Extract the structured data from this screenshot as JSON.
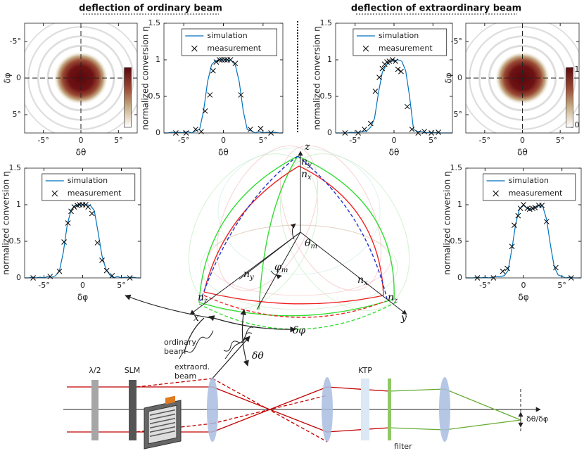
{
  "headings": [
    "deflection of ordinary beam",
    "deflection of extraordinary beam"
  ],
  "chart_data": [
    {
      "type": "heatmap",
      "x_label": "δθ",
      "y_label": "δφ",
      "xlim": [
        -7.5,
        7.5
      ],
      "ylim": [
        -7.5,
        7.5
      ],
      "y_reversed": true,
      "xticks": [
        {
          "value": -5,
          "label": "-5°"
        },
        0,
        {
          "value": 5,
          "label": "5°"
        }
      ],
      "yticks": [
        {
          "value": -5,
          "label": "-5°"
        },
        0,
        {
          "value": 5,
          "label": "5°"
        }
      ],
      "colorbar": true
    },
    {
      "type": "line",
      "x_label": "δθ",
      "y_label": "normalized conversion η",
      "xlim": [
        -7.5,
        7.5
      ],
      "ylim": [
        0,
        1.5
      ],
      "xticks": [
        {
          "value": -5,
          "label": "-5°"
        },
        0,
        {
          "value": 5,
          "label": "5°"
        }
      ],
      "yticks": [
        0,
        0.5,
        1,
        1.5
      ],
      "legend": "upper center",
      "series": [
        {
          "name": "simulation",
          "color": "#0072bd",
          "x": [
            -7.5,
            -7,
            -6.5,
            -6,
            -5.5,
            -5,
            -4.5,
            -4,
            -3.5,
            -3,
            -2.5,
            -2,
            -1.5,
            -1,
            -0.5,
            0,
            0.5,
            1,
            1.5,
            2,
            2.5,
            3,
            3.5,
            4,
            4.5,
            5,
            5.5,
            6,
            6.5,
            7,
            7.5
          ],
          "values": [
            0,
            0,
            0.01,
            0,
            0.01,
            0,
            0.02,
            0,
            0.03,
            0.05,
            0.3,
            0.7,
            0.93,
            0.99,
            1,
            1,
            1,
            0.99,
            0.93,
            0.7,
            0.3,
            0.05,
            0.03,
            0,
            0.02,
            0,
            0.01,
            0,
            0.01,
            0,
            0
          ]
        },
        {
          "name": "measurement",
          "color": "#000000",
          "marker": "x",
          "x": [
            -6,
            -4.7,
            -3.5,
            -2.8,
            -2.3,
            -1.7,
            -1.3,
            -0.9,
            -0.5,
            -0.2,
            0.2,
            0.5,
            0.9,
            1.5,
            2.2,
            3.4,
            4.7,
            6
          ],
          "values": [
            0,
            0,
            0.05,
            0.02,
            0.3,
            0.52,
            0.85,
            0.97,
            1,
            1,
            1,
            1,
            1,
            0.95,
            0.52,
            0.05,
            0.06,
            0
          ]
        }
      ]
    },
    {
      "type": "line",
      "x_label": "δθ",
      "y_label": "normalized conversion η",
      "xlim": [
        -7.5,
        7.5
      ],
      "ylim": [
        0,
        1.5
      ],
      "xticks": [
        {
          "value": -5,
          "label": "-5°"
        },
        0,
        {
          "value": 5,
          "label": "5°"
        }
      ],
      "yticks": [
        0,
        0.5,
        1,
        1.5
      ],
      "legend": "upper center",
      "series": [
        {
          "name": "simulation",
          "color": "#0072bd",
          "x": [
            -7.5,
            -7,
            -6.5,
            -6,
            -5.5,
            -5,
            -4.5,
            -4,
            -3.5,
            -3,
            -2.5,
            -2,
            -1.5,
            -1,
            -0.5,
            0,
            0.5,
            1,
            1.5,
            2,
            2.5,
            3,
            3.5,
            4,
            4.5,
            5,
            5.5,
            6,
            6.5,
            7,
            7.5
          ],
          "values": [
            0,
            0,
            0,
            0,
            0.01,
            0,
            0.01,
            0.02,
            0.03,
            0.08,
            0.2,
            0.55,
            0.83,
            0.93,
            0.97,
            0.99,
            1,
            0.98,
            0.85,
            0.5,
            0.05,
            0.02,
            0.02,
            0,
            0.01,
            0,
            0.01,
            0,
            0,
            0,
            0
          ]
        },
        {
          "name": "measurement",
          "color": "#000000",
          "marker": "x",
          "x": [
            -6.3,
            -4.6,
            -3.8,
            -3,
            -2.4,
            -1.9,
            -1.5,
            -1.2,
            -0.9,
            -0.6,
            -0.2,
            0.2,
            0.5,
            0.9,
            1.7,
            2.3,
            3.1,
            3.9,
            4.8,
            5.7
          ],
          "values": [
            0,
            0,
            0.05,
            0.13,
            0.57,
            0.76,
            0.88,
            0.94,
            0.97,
            0.98,
            1,
            0.98,
            0.87,
            0.84,
            0.36,
            0.05,
            0,
            0.02,
            0,
            0.01
          ]
        }
      ]
    },
    {
      "type": "heatmap",
      "x_label": "δθ",
      "y_label": "δφ",
      "xlim": [
        -7.5,
        7.5
      ],
      "ylim": [
        -7.5,
        7.5
      ],
      "y_reversed": true,
      "xticks": [
        {
          "value": -5,
          "label": "-5°"
        },
        0,
        {
          "value": 5,
          "label": "5°"
        }
      ],
      "yticks": [
        {
          "value": -5,
          "label": "-5°"
        },
        0,
        {
          "value": 5,
          "label": "5°"
        }
      ],
      "colorbar": true,
      "clim": [
        0,
        1
      ],
      "colorbar_ticks": [
        0,
        1
      ]
    },
    {
      "type": "line",
      "x_label": "δφ",
      "y_label": "normalized conversion η",
      "xlim": [
        -7.5,
        7.5
      ],
      "ylim": [
        0,
        1.5
      ],
      "xticks": [
        {
          "value": -5,
          "label": "-5°"
        },
        0,
        {
          "value": 5,
          "label": "5°"
        }
      ],
      "yticks": [
        0,
        0.5,
        1,
        1.5
      ],
      "legend": "upper center",
      "series": [
        {
          "name": "simulation",
          "color": "#0072bd",
          "x": [
            -7.5,
            -7,
            -6.5,
            -6,
            -5.5,
            -5,
            -4.5,
            -4,
            -3.5,
            -3,
            -2.5,
            -2,
            -1.5,
            -1,
            -0.5,
            0,
            0.5,
            1,
            1.5,
            2,
            2.5,
            3,
            3.5,
            4,
            4.5,
            5,
            5.5,
            6,
            6.5,
            7,
            7.5
          ],
          "values": [
            0,
            0,
            0.01,
            0,
            0.01,
            0,
            0.02,
            0.01,
            0.03,
            0.1,
            0.35,
            0.72,
            0.93,
            0.99,
            1,
            1,
            1,
            0.99,
            0.92,
            0.62,
            0.3,
            0.12,
            0.04,
            0,
            0.02,
            0,
            0.01,
            0,
            0.01,
            0,
            0
          ]
        },
        {
          "name": "measurement",
          "color": "#000000",
          "marker": "x",
          "x": [
            -6.4,
            -4.2,
            -3,
            -2.4,
            -1.9,
            -1.5,
            -1.1,
            -0.7,
            -0.4,
            0,
            0.4,
            0.7,
            1.2,
            1.9,
            2.5,
            3.1,
            3.8,
            6.1
          ],
          "values": [
            0,
            0.02,
            0.09,
            0.49,
            0.75,
            0.91,
            0.97,
            0.99,
            1,
            1,
            1,
            0.97,
            0.88,
            0.48,
            0.24,
            0.1,
            0.03,
            0
          ]
        }
      ]
    },
    {
      "type": "line",
      "x_label": "δφ",
      "y_label": "normalized conversion η",
      "xlim": [
        -7.5,
        7.5
      ],
      "ylim": [
        0,
        1.5
      ],
      "xticks": [
        {
          "value": -5,
          "label": "-5°"
        },
        0,
        {
          "value": 5,
          "label": "5°"
        }
      ],
      "yticks": [
        0,
        0.5,
        1,
        1.5
      ],
      "legend": "upper center",
      "series": [
        {
          "name": "simulation",
          "color": "#0072bd",
          "x": [
            -7.5,
            -7,
            -6.5,
            -6,
            -5.5,
            -5,
            -4.5,
            -4,
            -3.5,
            -3,
            -2.5,
            -2,
            -1.5,
            -1,
            -0.5,
            0,
            0.5,
            1,
            1.5,
            2,
            2.5,
            3,
            3.5,
            4,
            4.5,
            5,
            5.5,
            6,
            6.5,
            7,
            7.5
          ],
          "values": [
            0,
            0,
            0,
            0.01,
            0,
            0.01,
            0,
            0.01,
            0.02,
            0.02,
            0.03,
            0.1,
            0.4,
            0.75,
            0.95,
            0.99,
            0.95,
            0.94,
            0.96,
            0.99,
            0.98,
            0.8,
            0.45,
            0.15,
            0.04,
            0.02,
            0,
            0.01,
            0,
            0,
            0
          ]
        },
        {
          "name": "measurement",
          "color": "#000000",
          "marker": "x",
          "x": [
            -6,
            -3.9,
            -2.7,
            -2.1,
            -1.5,
            -1.2,
            -0.7,
            -0.4,
            0,
            0.5,
            0.8,
            1.2,
            1.5,
            2,
            2.4,
            3,
            4.2,
            6.2
          ],
          "values": [
            0,
            0,
            0.09,
            0.13,
            0.43,
            0.72,
            0.85,
            0.95,
            1,
            0.95,
            0.94,
            0.95,
            0.96,
            0.99,
            0.99,
            0.77,
            0.14,
            0
          ]
        }
      ]
    }
  ],
  "diagram": {
    "axes": [
      "x",
      "y",
      "z"
    ],
    "indices": [
      {
        "text": "n",
        "sub": "y"
      },
      {
        "text": "n",
        "sub": "x"
      },
      {
        "text": "n",
        "sub": "z"
      },
      {
        "text": "n",
        "sub": "y"
      },
      {
        "text": "n",
        "sub": "x"
      },
      {
        "text": "n",
        "sub": "z"
      }
    ],
    "angles": [
      {
        "text": "θ",
        "sub": "m"
      },
      {
        "text": "φ",
        "sub": "m"
      }
    ],
    "deflections": [
      "δφ",
      "δθ"
    ],
    "beams": [
      [
        "ordinary",
        "beam"
      ],
      [
        "extraord.",
        "beam"
      ]
    ],
    "setup": [
      "λ/2",
      "SLM",
      "KTP",
      "filter",
      "δθ/δφ"
    ]
  }
}
